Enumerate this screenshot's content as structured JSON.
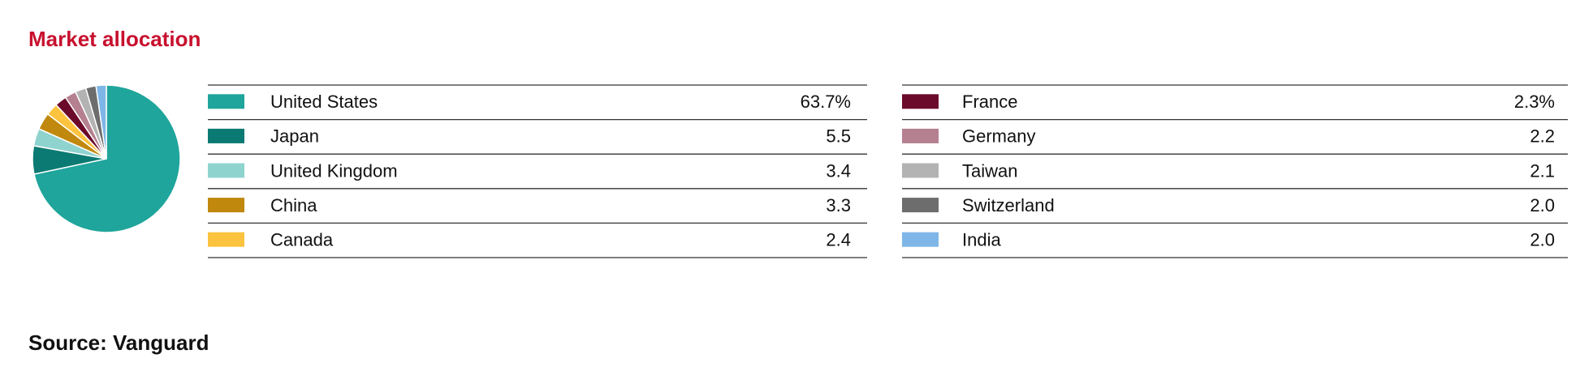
{
  "chart_data": {
    "type": "pie",
    "title": "Market allocation",
    "source": "Source: Vanguard",
    "categories": [
      "United States",
      "Japan",
      "United Kingdom",
      "China",
      "Canada",
      "France",
      "Germany",
      "Taiwan",
      "Switzerland",
      "India"
    ],
    "values": [
      63.7,
      5.5,
      3.4,
      3.3,
      2.4,
      2.3,
      2.2,
      2.1,
      2.0,
      2.0
    ],
    "value_labels": [
      "63.7%",
      "5.5",
      "3.4",
      "3.3",
      "2.4",
      "2.3%",
      "2.2",
      "2.1",
      "2.0",
      "2.0"
    ],
    "colors": [
      "#1fa59b",
      "#0b7a72",
      "#8fd3cf",
      "#c0880c",
      "#fcc33f",
      "#6b0a2a",
      "#b5808f",
      "#b3b3b3",
      "#6d6d6d",
      "#7eb6e8"
    ]
  }
}
